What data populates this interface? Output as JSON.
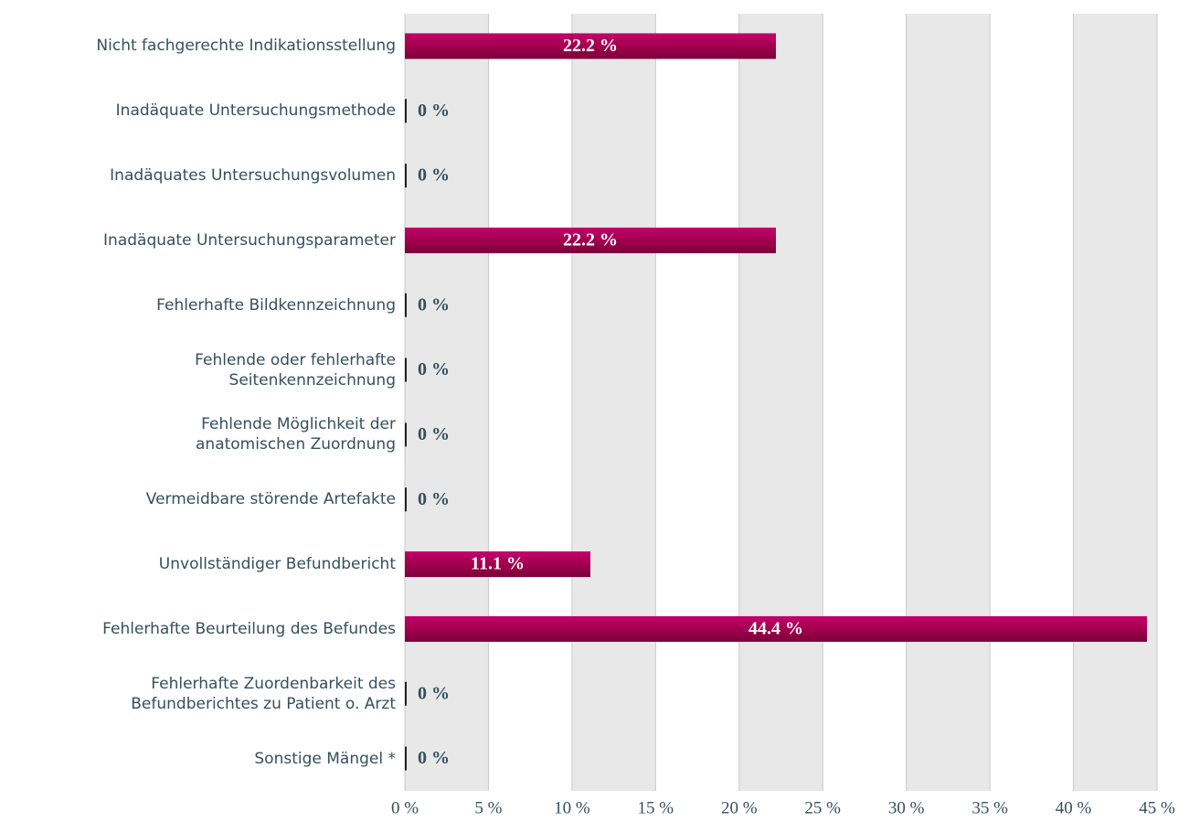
{
  "chart_data": {
    "type": "barh",
    "categories": [
      "Nicht fachgerechte Indikationsstellung",
      "Inadäquate Untersuchungsmethode",
      "Inadäquates Untersuchungsvolumen",
      "Inadäquate Untersuchungsparameter",
      "Fehlerhafte Bildkennzeichnung",
      "Fehlende oder fehlerhafte\nSeitenkennzeichnung",
      "Fehlende Möglichkeit der\nanatomischen Zuordnung",
      "Vermeidbare störende Artefakte",
      "Unvollständiger Befundbericht",
      "Fehlerhafte Beurteilung des Befundes",
      "Fehlerhafte Zuordenbarkeit des\nBefundberichtes zu Patient o. Arzt",
      "Sonstige Mängel *"
    ],
    "values": [
      22.2,
      0,
      0,
      22.2,
      0,
      0,
      0,
      0,
      11.1,
      44.4,
      0,
      0
    ],
    "value_labels": [
      "22.2 %",
      "0 %",
      "0 %",
      "22.2 %",
      "0 %",
      "0 %",
      "0 %",
      "0 %",
      "11.1 %",
      "44.4 %",
      "0 %",
      "0 %"
    ],
    "color": "#a3004e",
    "xlim": [
      0,
      45
    ],
    "xticks": [
      {
        "value": 0,
        "label": "0 %"
      },
      {
        "value": 5,
        "label": "5 %"
      },
      {
        "value": 10,
        "label": "10 %"
      },
      {
        "value": 15,
        "label": "15 %"
      },
      {
        "value": 20,
        "label": "20 %"
      },
      {
        "value": 25,
        "label": "25 %"
      },
      {
        "value": 30,
        "label": "30 %"
      },
      {
        "value": 35,
        "label": "35 %"
      },
      {
        "value": 40,
        "label": "40 %"
      },
      {
        "value": 45,
        "label": "45 %"
      }
    ],
    "grid": true
  }
}
